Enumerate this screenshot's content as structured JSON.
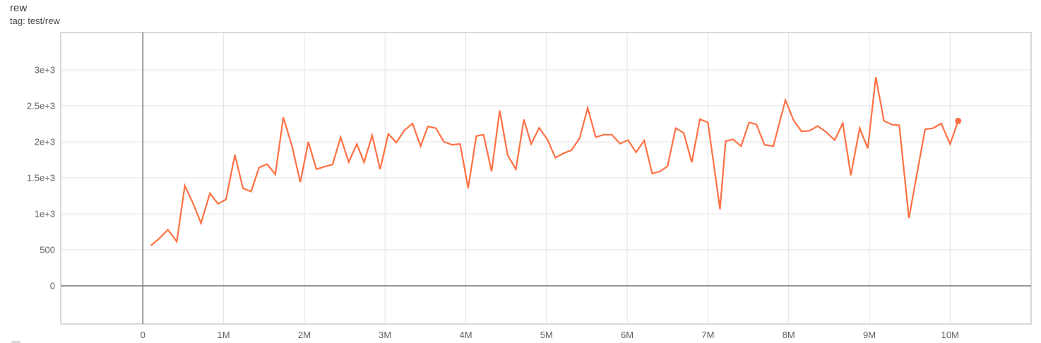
{
  "card": {
    "title": "rew",
    "tag_line": "tag: test/rew"
  },
  "colors": {
    "series": "#ff7043",
    "grid": "#e3e3e3",
    "zero_axis": "#757575",
    "plot_border": "#d9d9d9",
    "tick_label": "#616161",
    "title_text": "#3c3c3c",
    "background": "#ffffff"
  },
  "chart_data": {
    "type": "line",
    "title": "rew",
    "tag": "test/rew",
    "xlabel": "",
    "ylabel": "",
    "x_units": "steps (M = millions)",
    "grid": true,
    "legend_position": "none",
    "xlim_m": [
      -1.02,
      11.0
    ],
    "ylim": [
      -530,
      3520
    ],
    "x_tick_values_m": [
      0,
      1,
      2,
      3,
      4,
      5,
      6,
      7,
      8,
      9,
      10
    ],
    "x_tick_labels": [
      "0",
      "1M",
      "2M",
      "3M",
      "4M",
      "5M",
      "6M",
      "7M",
      "8M",
      "9M",
      "10M"
    ],
    "y_tick_values": [
      0,
      500,
      1000,
      1500,
      2000,
      2500,
      3000
    ],
    "y_tick_labels": [
      "0",
      "500",
      "1e+3",
      "1.5e+3",
      "2e+3",
      "2.5e+3",
      "3e+3"
    ],
    "series": [
      {
        "name": "test/rew",
        "color": "#ff7043",
        "end_marker": true,
        "x_m": [
          0.1,
          0.21,
          0.31,
          0.42,
          0.52,
          0.62,
          0.72,
          0.83,
          0.93,
          1.03,
          1.14,
          1.24,
          1.34,
          1.44,
          1.54,
          1.64,
          1.74,
          1.85,
          1.95,
          2.05,
          2.15,
          2.25,
          2.35,
          2.45,
          2.55,
          2.65,
          2.74,
          2.84,
          2.94,
          3.04,
          3.14,
          3.24,
          3.34,
          3.44,
          3.53,
          3.63,
          3.73,
          3.83,
          3.93,
          4.03,
          4.13,
          4.22,
          4.32,
          4.42,
          4.52,
          4.62,
          4.72,
          4.81,
          4.91,
          5.01,
          5.11,
          5.21,
          5.31,
          5.41,
          5.51,
          5.61,
          5.71,
          5.81,
          5.91,
          6.01,
          6.11,
          6.21,
          6.31,
          6.41,
          6.5,
          6.6,
          6.7,
          6.8,
          6.9,
          7.0,
          7.15,
          7.22,
          7.31,
          7.41,
          7.51,
          7.6,
          7.7,
          7.81,
          7.96,
          8.06,
          8.16,
          8.26,
          8.36,
          8.46,
          8.57,
          8.67,
          8.77,
          8.88,
          8.98,
          9.08,
          9.18,
          9.28,
          9.37,
          9.49,
          9.59,
          9.69,
          9.79,
          9.89,
          10.0,
          10.1
        ],
        "y": [
          560,
          665,
          780,
          615,
          1390,
          1150,
          870,
          1285,
          1140,
          1200,
          1820,
          1355,
          1310,
          1645,
          1690,
          1550,
          2340,
          1930,
          1440,
          2000,
          1620,
          1655,
          1685,
          2065,
          1720,
          1970,
          1715,
          2090,
          1620,
          2110,
          1990,
          2160,
          2255,
          1940,
          2215,
          2190,
          2000,
          1960,
          1970,
          1355,
          2080,
          2100,
          1590,
          2435,
          1815,
          1620,
          2310,
          1970,
          2195,
          2035,
          1780,
          1840,
          1885,
          2050,
          2473,
          2065,
          2100,
          2100,
          1975,
          2025,
          1855,
          2020,
          1560,
          1590,
          1665,
          2190,
          2125,
          1715,
          2315,
          2270,
          1065,
          2010,
          2035,
          1940,
          2270,
          2245,
          1960,
          1940,
          2580,
          2300,
          2145,
          2155,
          2220,
          2140,
          2025,
          2260,
          1535,
          2190,
          1910,
          2900,
          2290,
          2240,
          2230,
          940,
          1560,
          2175,
          2190,
          2255,
          1970,
          2290
        ]
      }
    ]
  }
}
